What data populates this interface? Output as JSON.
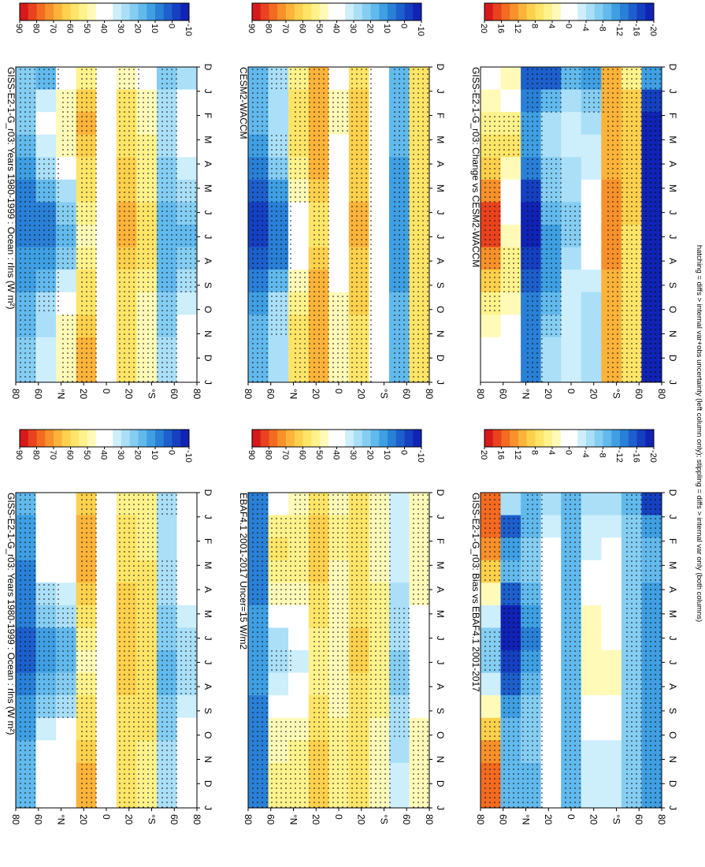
{
  "figure": {
    "footnote": "hatching = diffs > internal var+obs uncertainty (left column only); stippling = diffs > internal var only (both columns)"
  },
  "scales": {
    "abs": {
      "ticks": [
        "90",
        "80",
        "70",
        "60",
        "50",
        "40",
        "30",
        "20",
        "10",
        "0",
        "-10"
      ],
      "colors": [
        "#d7191c",
        "#e8421e",
        "#f26b21",
        "#f7912b",
        "#fbb33a",
        "#fdd04d",
        "#fee568",
        "#fff28c",
        "#fffab8",
        "#ffffff",
        "#ffffff",
        "#cdeefb",
        "#aadff7",
        "#86cdf2",
        "#62b9ec",
        "#3f9fe2",
        "#2a80d6",
        "#1d5fcb",
        "#1540c0",
        "#1023b4"
      ]
    },
    "diff": {
      "ticks": [
        "20",
        "16",
        "12",
        "8",
        "4",
        "0",
        "-4",
        "-8",
        "-12",
        "-16",
        "-20"
      ],
      "colors": [
        "#d7191c",
        "#e8421e",
        "#f26b21",
        "#f7912b",
        "#fbb33a",
        "#fdd04d",
        "#fee568",
        "#fff28c",
        "#fffab8",
        "#ffffff",
        "#ffffff",
        "#cdeefb",
        "#aadff7",
        "#86cdf2",
        "#62b9ec",
        "#3f9fe2",
        "#2a80d6",
        "#1d5fcb",
        "#1540c0",
        "#1023b4"
      ]
    }
  },
  "axes": {
    "months": [
      "D",
      "J",
      "F",
      "M",
      "A",
      "M",
      "J",
      "J",
      "A",
      "S",
      "O",
      "N",
      "D",
      "J"
    ],
    "lat_labels": [
      "80",
      "60",
      "°N",
      "20",
      "0",
      "20",
      "°S",
      "60",
      "80"
    ]
  },
  "chart_data": [
    {
      "type": "heatmap",
      "title": "GISS-E2-1-G_r03: Years 1980-1999 : Ocean : rlns (W m²)",
      "x": [
        "D",
        "J",
        "F",
        "M",
        "A",
        "M",
        "J",
        "J",
        "A",
        "S",
        "O",
        "N",
        "D",
        "J"
      ],
      "y": [
        "80N",
        "60N",
        "40N",
        "20N",
        "0",
        "20S",
        "40S",
        "60S",
        "80S"
      ],
      "scale": "abs",
      "colorbar_range": [
        -10,
        90
      ],
      "values": [
        [
          22,
          22,
          21,
          18,
          14,
          10,
          8,
          9,
          12,
          15,
          18,
          20,
          22,
          22
        ],
        [
          18,
          32,
          36,
          34,
          26,
          16,
          10,
          10,
          14,
          20,
          26,
          30,
          32,
          32
        ],
        [
          40,
          46,
          48,
          46,
          40,
          30,
          22,
          20,
          24,
          32,
          40,
          46,
          48,
          48
        ],
        [
          52,
          62,
          66,
          64,
          60,
          56,
          52,
          50,
          52,
          56,
          60,
          64,
          66,
          66
        ],
        [
          36,
          42,
          44,
          42,
          40,
          38,
          36,
          36,
          38,
          40,
          42,
          44,
          44,
          42
        ],
        [
          50,
          56,
          58,
          60,
          62,
          64,
          66,
          66,
          64,
          60,
          58,
          56,
          56,
          56
        ],
        [
          44,
          48,
          50,
          52,
          52,
          54,
          56,
          58,
          58,
          54,
          50,
          48,
          48,
          48
        ],
        [
          24,
          28,
          28,
          26,
          24,
          22,
          20,
          18,
          18,
          20,
          22,
          24,
          26,
          26
        ],
        [
          30,
          44,
          44,
          40,
          34,
          28,
          22,
          20,
          22,
          26,
          32,
          38,
          42,
          42
        ]
      ]
    },
    {
      "type": "heatmap",
      "title": "GISS-E2-1-G_r03: Years 1980-1999 : Ocean : rlns (W m²)",
      "x": [
        "D",
        "J",
        "F",
        "M",
        "A",
        "M",
        "J",
        "J",
        "A",
        "S",
        "O",
        "N",
        "D",
        "J"
      ],
      "y": [
        "80N",
        "60N",
        "40N",
        "20N",
        "0",
        "20S",
        "40S",
        "60S",
        "80S"
      ],
      "scale": "abs",
      "colorbar_range": [
        -10,
        90
      ],
      "values": [
        [
          16,
          14,
          12,
          10,
          8,
          6,
          4,
          5,
          8,
          12,
          14,
          16,
          16,
          16
        ],
        [
          38,
          40,
          40,
          36,
          28,
          22,
          14,
          12,
          16,
          24,
          32,
          36,
          38,
          38
        ],
        [
          40,
          42,
          40,
          36,
          32,
          26,
          20,
          18,
          22,
          28,
          36,
          40,
          42,
          42
        ],
        [
          62,
          66,
          68,
          66,
          62,
          56,
          52,
          50,
          52,
          56,
          60,
          64,
          66,
          66
        ],
        [
          40,
          44,
          44,
          42,
          40,
          38,
          38,
          38,
          40,
          42,
          44,
          44,
          44,
          44
        ],
        [
          54,
          58,
          58,
          60,
          62,
          62,
          64,
          64,
          62,
          60,
          58,
          56,
          56,
          56
        ],
        [
          52,
          54,
          54,
          56,
          56,
          58,
          58,
          60,
          60,
          58,
          56,
          54,
          54,
          54
        ],
        [
          28,
          30,
          30,
          28,
          26,
          24,
          22,
          20,
          20,
          22,
          24,
          26,
          28,
          28
        ],
        [
          40,
          42,
          42,
          40,
          36,
          32,
          28,
          26,
          28,
          32,
          36,
          38,
          40,
          40
        ]
      ]
    },
    {
      "type": "heatmap",
      "title": "EBAF4.1 2001-2017 Uncer=15 W/m2",
      "x": [
        "D",
        "J",
        "F",
        "M",
        "A",
        "M",
        "J",
        "J",
        "A",
        "S",
        "O",
        "N",
        "D",
        "J"
      ],
      "y": [
        "80N",
        "60N",
        "40N",
        "20N",
        "0",
        "20S",
        "40S",
        "60S",
        "80S"
      ],
      "scale": "abs",
      "colorbar_range": [
        -10,
        90
      ],
      "values": [
        [
          6,
          6,
          6,
          8,
          10,
          12,
          14,
          14,
          12,
          10,
          8,
          6,
          6,
          6
        ],
        [
          42,
          52,
          56,
          52,
          46,
          38,
          30,
          28,
          32,
          40,
          46,
          50,
          52,
          52
        ],
        [
          50,
          54,
          54,
          52,
          48,
          42,
          36,
          34,
          38,
          44,
          50,
          52,
          54,
          54
        ],
        [
          60,
          64,
          64,
          62,
          60,
          56,
          54,
          52,
          54,
          56,
          60,
          62,
          64,
          64
        ],
        [
          48,
          52,
          52,
          50,
          48,
          46,
          46,
          46,
          48,
          50,
          52,
          52,
          52,
          52
        ],
        [
          56,
          58,
          58,
          60,
          60,
          60,
          62,
          62,
          60,
          58,
          58,
          58,
          56,
          56
        ],
        [
          48,
          50,
          50,
          50,
          52,
          52,
          54,
          54,
          54,
          52,
          50,
          50,
          48,
          48
        ],
        [
          32,
          34,
          34,
          32,
          30,
          28,
          26,
          24,
          24,
          26,
          28,
          30,
          32,
          32
        ],
        [
          50,
          50,
          50,
          48,
          46,
          44,
          42,
          40,
          42,
          44,
          46,
          48,
          50,
          50
        ]
      ]
    },
    {
      "type": "heatmap",
      "title": "CESM2-WACCM",
      "x": [
        "D",
        "J",
        "F",
        "M",
        "A",
        "M",
        "J",
        "J",
        "A",
        "S",
        "O",
        "N",
        "D",
        "J"
      ],
      "y": [
        "80N",
        "60N",
        "40N",
        "20N",
        "0",
        "20S",
        "40S",
        "60S",
        "80S"
      ],
      "scale": "abs",
      "colorbar_range": [
        -10,
        90
      ],
      "values": [
        [
          20,
          18,
          16,
          12,
          8,
          4,
          0,
          0,
          4,
          8,
          12,
          16,
          20,
          20
        ],
        [
          28,
          30,
          30,
          28,
          22,
          14,
          8,
          6,
          10,
          18,
          26,
          28,
          30,
          30
        ],
        [
          54,
          58,
          58,
          56,
          52,
          46,
          40,
          38,
          42,
          48,
          54,
          56,
          58,
          58
        ],
        [
          66,
          70,
          70,
          68,
          66,
          62,
          60,
          60,
          62,
          66,
          68,
          70,
          70,
          70
        ],
        [
          44,
          46,
          46,
          44,
          44,
          42,
          42,
          42,
          44,
          44,
          46,
          46,
          46,
          46
        ],
        [
          60,
          62,
          62,
          62,
          64,
          64,
          66,
          66,
          64,
          62,
          62,
          60,
          60,
          60
        ],
        [
          40,
          42,
          42,
          42,
          42,
          42,
          44,
          44,
          44,
          42,
          42,
          40,
          40,
          40
        ],
        [
          18,
          18,
          18,
          16,
          14,
          14,
          12,
          12,
          12,
          14,
          16,
          18,
          18,
          18
        ],
        [
          60,
          60,
          60,
          58,
          58,
          56,
          56,
          56,
          56,
          58,
          58,
          60,
          60,
          60
        ]
      ]
    },
    {
      "type": "heatmap",
      "title": "GISS-E2-1-G_r03: Bias vs EBAF4.1 2001-2017",
      "x": [
        "D",
        "J",
        "F",
        "M",
        "A",
        "M",
        "J",
        "J",
        "A",
        "S",
        "O",
        "N",
        "D",
        "J"
      ],
      "y": [
        "80N",
        "60N",
        "40N",
        "20N",
        "0",
        "20S",
        "40S",
        "60S",
        "80S"
      ],
      "scale": "diff",
      "colorbar_range": [
        -20,
        20
      ],
      "values": [
        [
          16,
          16,
          14,
          10,
          4,
          -2,
          -6,
          -6,
          -2,
          4,
          10,
          14,
          16,
          16
        ],
        [
          -4,
          -14,
          -10,
          -8,
          -14,
          -18,
          -18,
          -16,
          -14,
          -10,
          -8,
          -8,
          -8,
          -8
        ],
        [
          -8,
          -8,
          -6,
          -6,
          -8,
          -10,
          -12,
          -10,
          -8,
          -6,
          -6,
          -6,
          -8,
          -8
        ],
        [
          -4,
          -2,
          2,
          2,
          2,
          2,
          2,
          2,
          2,
          2,
          2,
          2,
          2,
          2
        ],
        [
          -8,
          -8,
          -8,
          -8,
          -8,
          -8,
          -8,
          -8,
          -8,
          -8,
          -8,
          -8,
          -8,
          -8
        ],
        [
          -4,
          -2,
          -2,
          0,
          2,
          4,
          4,
          4,
          4,
          2,
          0,
          -2,
          -2,
          -2
        ],
        [
          -4,
          -2,
          0,
          2,
          2,
          2,
          2,
          4,
          4,
          2,
          0,
          -2,
          -2,
          -2
        ],
        [
          -8,
          -6,
          -6,
          -6,
          -6,
          -6,
          -6,
          -6,
          -6,
          -6,
          -6,
          -6,
          -6,
          -6
        ],
        [
          -16,
          -10,
          -8,
          -8,
          -10,
          -10,
          -10,
          -10,
          -10,
          -10,
          -10,
          -10,
          -10,
          -10
        ]
      ]
    },
    {
      "type": "heatmap",
      "title": "GISS-E2-1-G_r03: Change vs CESM2-WACCM",
      "x": [
        "D",
        "J",
        "F",
        "M",
        "A",
        "M",
        "J",
        "J",
        "A",
        "S",
        "O",
        "N",
        "D",
        "J"
      ],
      "y": [
        "80N",
        "60N",
        "40N",
        "20N",
        "0",
        "20S",
        "40S",
        "60S",
        "80S"
      ],
      "scale": "diff",
      "colorbar_range": [
        -20,
        20
      ],
      "values": [
        [
          2,
          4,
          6,
          8,
          10,
          14,
          18,
          18,
          14,
          10,
          6,
          4,
          2,
          2
        ],
        [
          4,
          2,
          6,
          8,
          4,
          2,
          2,
          4,
          6,
          6,
          4,
          2,
          2,
          2
        ],
        [
          -14,
          -12,
          -10,
          -10,
          -12,
          -16,
          -18,
          -18,
          -16,
          -14,
          -12,
          -12,
          -12,
          -12
        ],
        [
          -14,
          -8,
          -4,
          -4,
          -6,
          -6,
          -8,
          -10,
          -10,
          -10,
          -8,
          -6,
          -4,
          -4
        ],
        [
          -8,
          -4,
          -2,
          -2,
          -4,
          -4,
          -6,
          -6,
          -4,
          -2,
          -2,
          -2,
          -2,
          -2
        ],
        [
          -10,
          -6,
          -4,
          -2,
          -2,
          0,
          0,
          0,
          0,
          -2,
          -4,
          -4,
          -4,
          -4
        ],
        [
          12,
          12,
          12,
          12,
          12,
          14,
          14,
          14,
          14,
          12,
          12,
          12,
          12,
          12
        ],
        [
          6,
          10,
          10,
          10,
          10,
          10,
          10,
          8,
          8,
          8,
          8,
          8,
          8,
          8
        ],
        [
          -10,
          -16,
          -18,
          -18,
          -18,
          -18,
          -18,
          -18,
          -18,
          -18,
          -18,
          -18,
          -18,
          -18
        ]
      ]
    }
  ]
}
